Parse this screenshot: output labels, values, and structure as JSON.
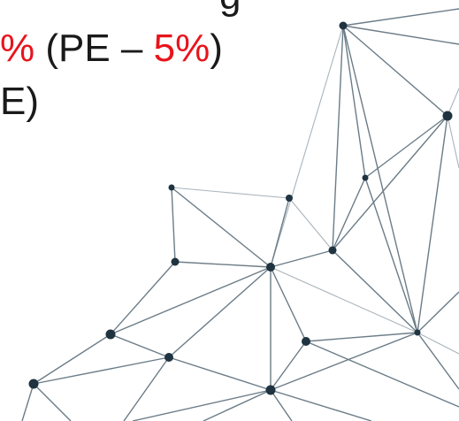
{
  "text": {
    "line1": "g",
    "line2_prefix": "%",
    "line2_paren_open": " (PE – ",
    "line2_value": "5%",
    "line2_paren_close": ")",
    "line3": "E)"
  },
  "colors": {
    "text": "#1a1a1a",
    "highlight": "#e8141b",
    "network_node": "#1f3340",
    "network_edge": "#6b7c87"
  },
  "decoration": "network-graph"
}
